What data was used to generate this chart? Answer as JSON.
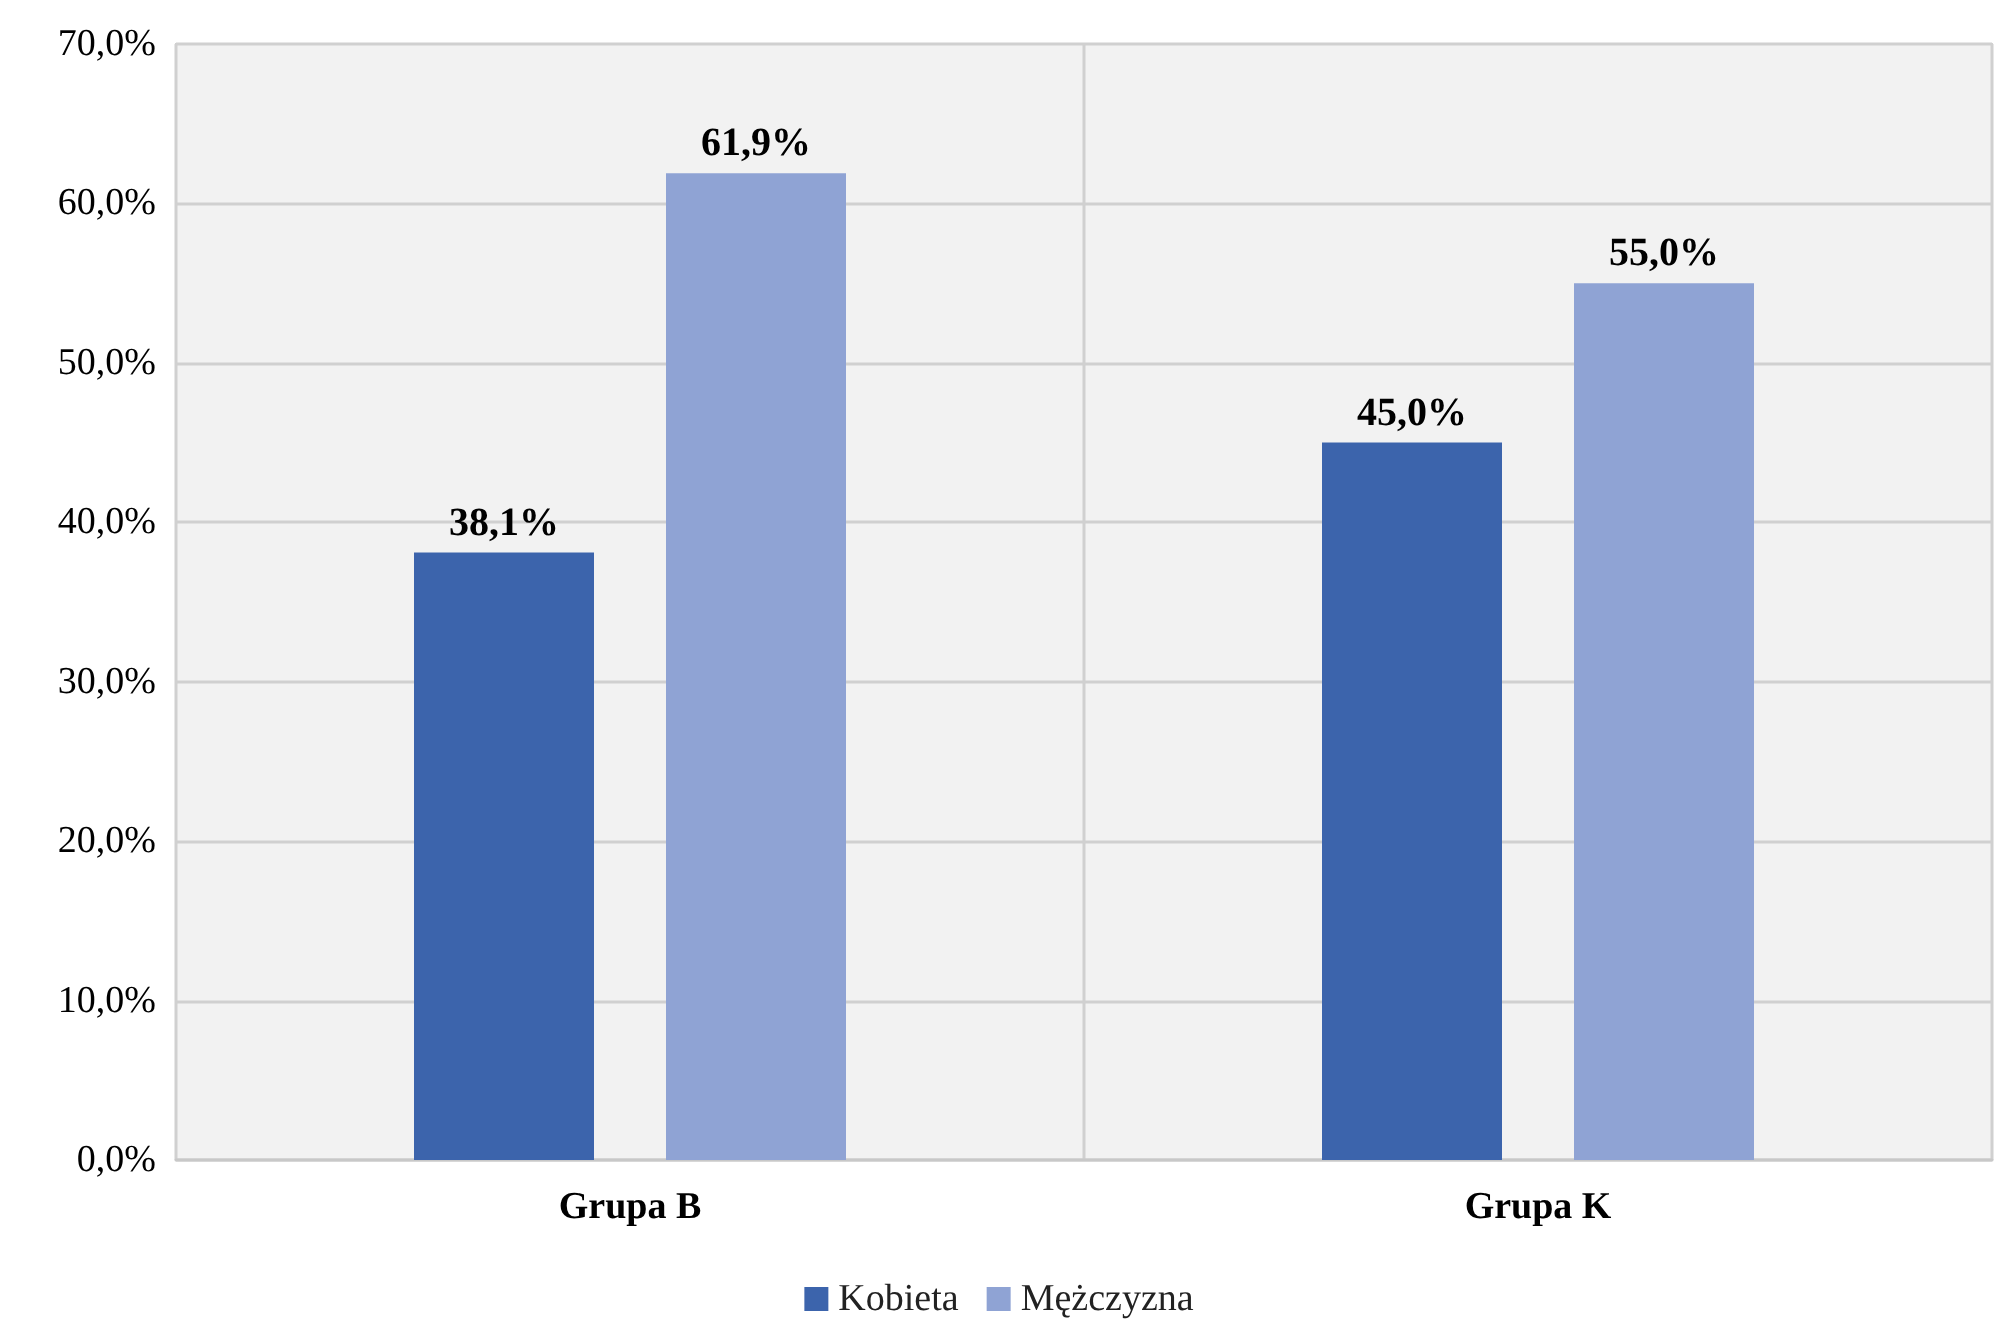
{
  "chart_data": {
    "type": "bar",
    "categories": [
      "Grupa B",
      "Grupa K"
    ],
    "series": [
      {
        "name": "Kobieta",
        "color": "#3c64ac",
        "values": [
          38.1,
          45.0
        ],
        "value_labels": [
          "38,1%",
          "45,0%"
        ]
      },
      {
        "name": "Mężczyzna",
        "color": "#8fa3d4",
        "values": [
          61.9,
          55.0
        ],
        "value_labels": [
          "61,9%",
          "55,0%"
        ]
      }
    ],
    "ylim": [
      0,
      70
    ],
    "yticks": [
      {
        "value": 0,
        "label": "0,0%"
      },
      {
        "value": 10,
        "label": "10,0%"
      },
      {
        "value": 20,
        "label": "20,0%"
      },
      {
        "value": 30,
        "label": "30,0%"
      },
      {
        "value": 40,
        "label": "40,0%"
      },
      {
        "value": 50,
        "label": "50,0%"
      },
      {
        "value": 60,
        "label": "60,0%"
      },
      {
        "value": 70,
        "label": "70,0%"
      }
    ],
    "grid": true,
    "legend": "bottom"
  }
}
